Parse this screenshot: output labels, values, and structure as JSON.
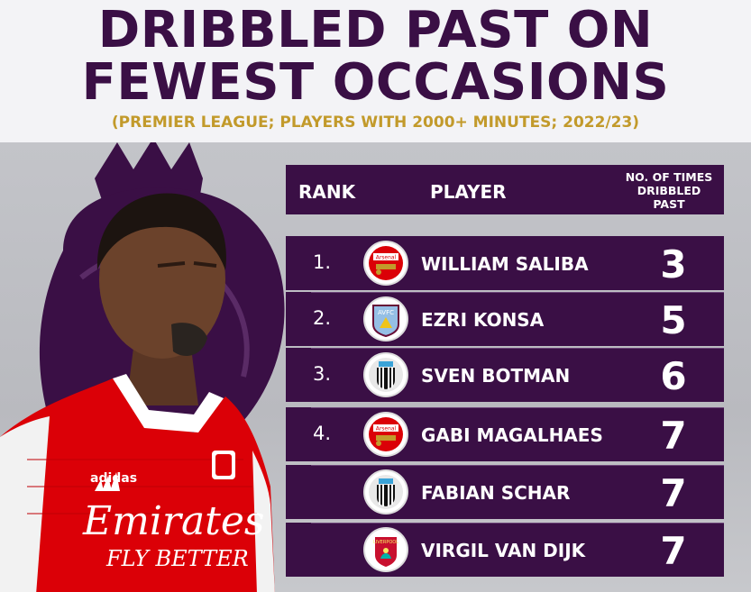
{
  "header": {
    "title_line_1": "DRIBBLED PAST ON",
    "title_line_2": "FEWEST OCCASIONS",
    "subtitle": "(PREMIER LEAGUE; PLAYERS WITH 2000+ MINUTES; 2022/23)"
  },
  "table": {
    "columns": {
      "rank": "RANK",
      "player": "PLAYER",
      "times": "NO. OF TIMES DRIBBLED PAST"
    },
    "rows": [
      {
        "rank": "1.",
        "player": "WILLIAM SALIBA",
        "club_icon": "arsenal-crest-icon",
        "count": "3"
      },
      {
        "rank": "2.",
        "player": "EZRI KONSA",
        "club_icon": "aston-villa-crest-icon",
        "count": "5"
      },
      {
        "rank": "3.",
        "player": "SVEN BOTMAN",
        "club_icon": "newcastle-crest-icon",
        "count": "6"
      },
      {
        "rank": "4.",
        "player": "GABI MAGALHAES",
        "club_icon": "arsenal-crest-icon",
        "count": "7"
      },
      {
        "rank": "",
        "player": "FABIAN SCHAR",
        "club_icon": "newcastle-crest-icon",
        "count": "7"
      },
      {
        "rank": "",
        "player": "VIRGIL VAN DIJK",
        "club_icon": "liverpool-crest-icon",
        "count": "7"
      }
    ]
  },
  "crest_text": {
    "arsenal": "Arsenal",
    "villa": "AVFC",
    "liverpool": "LIVERPOOL"
  },
  "shirt": {
    "sponsor_line_1": "Emirates",
    "sponsor_line_2": "FLY BETTER",
    "brand": "adidas"
  },
  "colors": {
    "purple": "#3a0f45",
    "gold": "#c29a2b",
    "arsenal_red": "#db0007"
  }
}
